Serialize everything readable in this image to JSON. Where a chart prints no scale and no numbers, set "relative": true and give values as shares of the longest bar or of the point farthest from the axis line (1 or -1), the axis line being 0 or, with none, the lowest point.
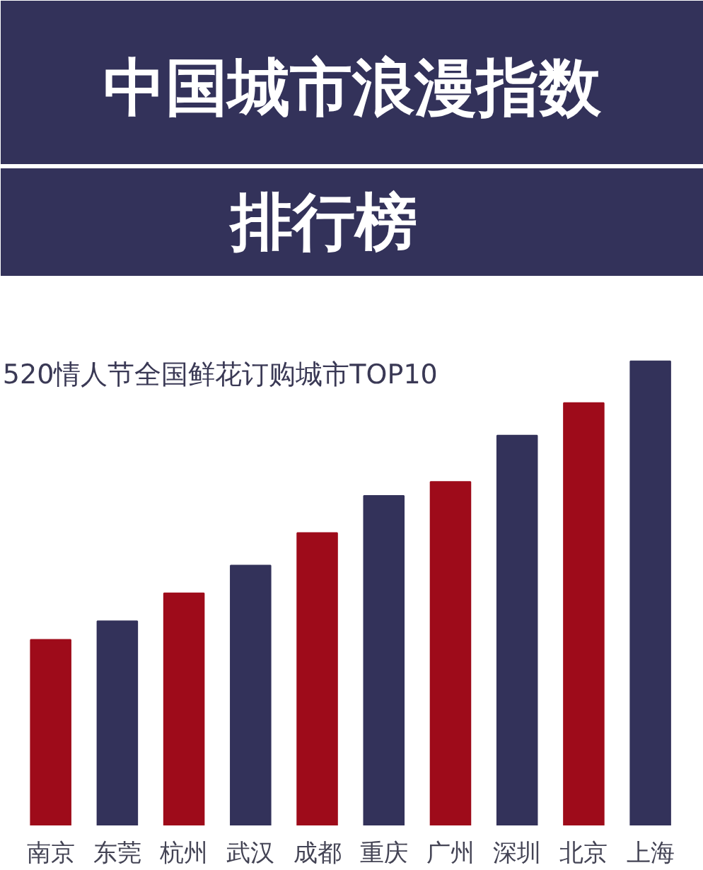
{
  "chart_data": {
    "type": "bar",
    "title": "中国城市浪漫指数",
    "subtitle": "排行榜",
    "annotations": [
      "520情人节全国鲜花订购城市TOP10"
    ],
    "categories": [
      "南京",
      "东莞",
      "杭州",
      "武汉",
      "成都",
      "重庆",
      "广州",
      "深圳",
      "北京",
      "上海"
    ],
    "relative": true,
    "values": [
      0.4,
      0.44,
      0.5,
      0.56,
      0.63,
      0.71,
      0.74,
      0.84,
      0.91,
      1.0
    ],
    "colors": [
      "#9e0b1a",
      "#33325a",
      "#9e0b1a",
      "#33325a",
      "#9e0b1a",
      "#33325a",
      "#9e0b1a",
      "#33325a",
      "#9e0b1a",
      "#33325a"
    ],
    "grid": false
  }
}
